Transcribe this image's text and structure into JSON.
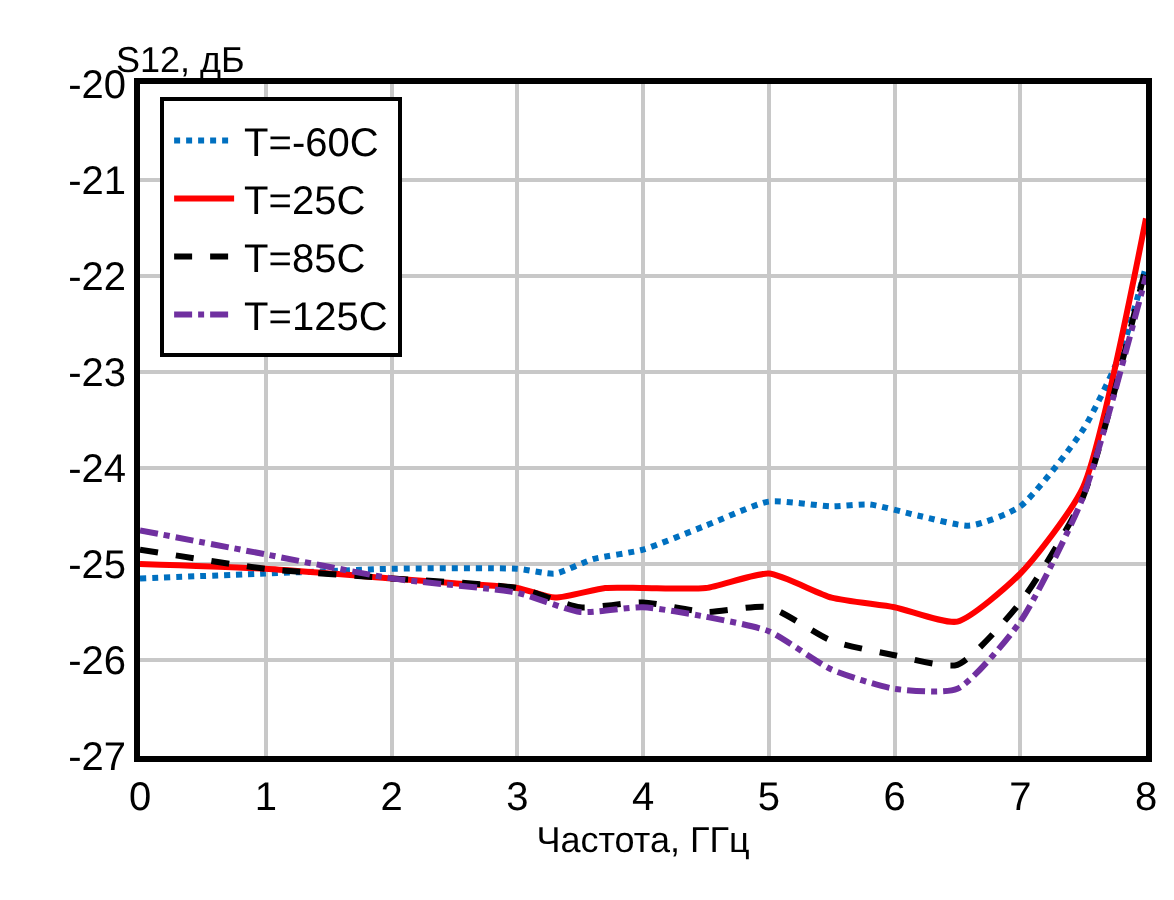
{
  "chart_data": {
    "type": "line",
    "xlabel": "Частота, ГГц",
    "ylabel": "S12, дБ",
    "xlim": [
      0,
      8
    ],
    "xticks": [
      0,
      1,
      2,
      3,
      4,
      5,
      6,
      7,
      8
    ],
    "ylim": [
      -27,
      -20
    ],
    "yticks": [
      -27,
      -26,
      -25,
      -24,
      -23,
      -22,
      -21,
      -20
    ],
    "grid": true,
    "legend": "top left",
    "marker": "none",
    "series": [
      {
        "name": "T=-60C",
        "color": "#0070c0",
        "line_style": "dotted",
        "x": [
          0,
          1,
          2,
          3,
          3.3,
          3.6,
          4,
          4.5,
          5,
          5.5,
          5.8,
          6.2,
          6.6,
          7,
          7.5,
          7.8,
          8
        ],
        "values": [
          -25.15,
          -25.1,
          -25.05,
          -25.05,
          -25.1,
          -24.95,
          -24.85,
          -24.6,
          -24.35,
          -24.4,
          -24.38,
          -24.5,
          -24.6,
          -24.4,
          -23.6,
          -22.8,
          -21.9
        ]
      },
      {
        "name": "T=25C",
        "color": "#ff0000",
        "line_style": "solid",
        "x": [
          0,
          1,
          2,
          2.5,
          3,
          3.3,
          3.7,
          4,
          4.5,
          5,
          5.5,
          6,
          6.5,
          7,
          7.5,
          8
        ],
        "values": [
          -25.0,
          -25.05,
          -25.15,
          -25.2,
          -25.25,
          -25.35,
          -25.25,
          -25.25,
          -25.25,
          -25.1,
          -25.35,
          -25.45,
          -25.6,
          -25.1,
          -24.2,
          -21.4
        ]
      },
      {
        "name": "T=85C",
        "color": "#000000",
        "line_style": "dashed",
        "x": [
          0,
          1,
          2,
          3,
          3.5,
          4,
          4.5,
          5,
          5.5,
          6,
          6.5,
          7,
          7.5,
          8
        ],
        "values": [
          -24.85,
          -25.05,
          -25.15,
          -25.25,
          -25.45,
          -25.4,
          -25.5,
          -25.45,
          -25.8,
          -25.95,
          -26.05,
          -25.4,
          -24.3,
          -21.9
        ]
      },
      {
        "name": "T=125C",
        "color": "#7030a0",
        "line_style": "dashdot",
        "x": [
          0,
          1,
          2,
          3,
          3.5,
          4,
          4.5,
          5,
          5.5,
          6,
          6.5,
          7,
          7.5,
          8
        ],
        "values": [
          -24.65,
          -24.9,
          -25.15,
          -25.3,
          -25.5,
          -25.45,
          -25.55,
          -25.7,
          -26.1,
          -26.3,
          -26.3,
          -25.6,
          -24.3,
          -22.0
        ]
      }
    ]
  }
}
